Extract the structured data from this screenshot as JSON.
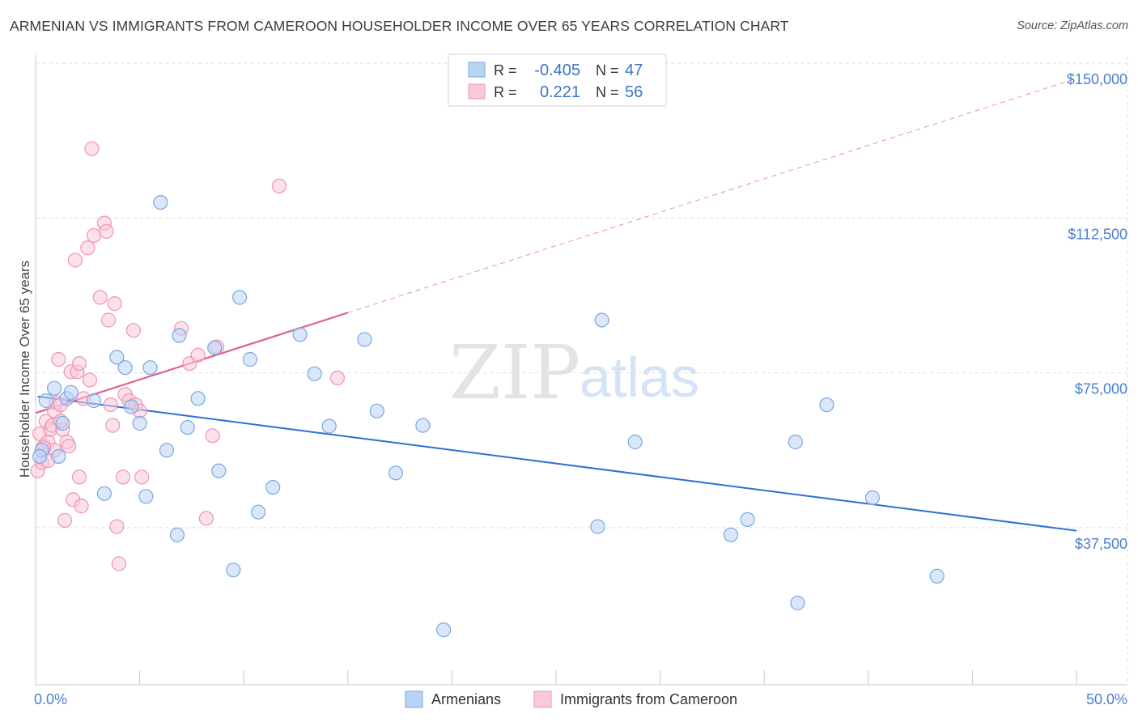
{
  "title": "ARMENIAN VS IMMIGRANTS FROM CAMEROON HOUSEHOLDER INCOME OVER 65 YEARS CORRELATION CHART",
  "source": "Source: ZipAtlas.com",
  "watermark": {
    "zip": "ZIP",
    "atlas": "atlas"
  },
  "colors": {
    "blue_fill": "#b9d3f3",
    "blue_stroke": "#7aa8e4",
    "blue_line": "#2e6fd0",
    "pink_fill": "#f9c9d8",
    "pink_stroke": "#ee95b2",
    "pink_line": "#e0628e",
    "grid": "#dddddd",
    "tick_text": "#4a7fcf"
  },
  "stats": {
    "r_label": "R =",
    "n_label": "N =",
    "series": [
      {
        "r": "-0.405",
        "n": "47"
      },
      {
        "r": "0.221",
        "n": "56"
      }
    ]
  },
  "chart_data": {
    "type": "scatter",
    "title": "ARMENIAN VS IMMIGRANTS FROM CAMEROON HOUSEHOLDER INCOME OVER 65 YEARS CORRELATION CHART",
    "xlabel": "",
    "ylabel": "Householder Income Over 65 years",
    "xlim": [
      0,
      50
    ],
    "ylim": [
      0,
      158000
    ],
    "x_tick_labels": [
      "0.0%",
      "50.0%"
    ],
    "y_ticks": [
      37500,
      75000,
      112500,
      150000
    ],
    "y_tick_labels": [
      "$37,500",
      "$75,000",
      "$112,500",
      "$150,000"
    ],
    "grid": true,
    "legend_position": "bottom",
    "series": [
      {
        "name": "Armenians",
        "r": -0.405,
        "n": 47,
        "trend": {
          "x": [
            0.1,
            50.0
          ],
          "y": [
            73000,
            40500
          ],
          "style": "solid"
        },
        "points": [
          [
            0.3,
            60000
          ],
          [
            0.5,
            72000
          ],
          [
            0.9,
            75000
          ],
          [
            1.1,
            58500
          ],
          [
            1.3,
            66500
          ],
          [
            1.5,
            72500
          ],
          [
            1.7,
            74000
          ],
          [
            2.8,
            72000
          ],
          [
            3.3,
            49500
          ],
          [
            3.9,
            82500
          ],
          [
            4.3,
            80000
          ],
          [
            4.6,
            70500
          ],
          [
            5.0,
            66500
          ],
          [
            5.3,
            48800
          ],
          [
            5.5,
            80000
          ],
          [
            6.0,
            120000
          ],
          [
            6.3,
            60000
          ],
          [
            6.8,
            39500
          ],
          [
            6.9,
            87800
          ],
          [
            7.3,
            65500
          ],
          [
            7.8,
            72500
          ],
          [
            8.6,
            84800
          ],
          [
            8.8,
            55000
          ],
          [
            9.5,
            31000
          ],
          [
            9.8,
            97000
          ],
          [
            10.3,
            82000
          ],
          [
            10.7,
            45000
          ],
          [
            11.4,
            51000
          ],
          [
            12.7,
            88000
          ],
          [
            13.4,
            78500
          ],
          [
            14.1,
            65800
          ],
          [
            15.8,
            86800
          ],
          [
            16.4,
            69500
          ],
          [
            17.3,
            54500
          ],
          [
            18.6,
            66000
          ],
          [
            19.6,
            16500
          ],
          [
            27.0,
            41500
          ],
          [
            27.2,
            91500
          ],
          [
            28.8,
            62000
          ],
          [
            33.4,
            39500
          ],
          [
            34.2,
            43200
          ],
          [
            36.5,
            62000
          ],
          [
            36.6,
            23000
          ],
          [
            38.0,
            71000
          ],
          [
            40.2,
            48500
          ],
          [
            43.3,
            29500
          ],
          [
            0.2,
            58500
          ]
        ]
      },
      {
        "name": "Immigrants from Cameroon",
        "r": 0.221,
        "n": 56,
        "trend": {
          "x": [
            0.0,
            50.0
          ],
          "y": [
            69000,
            150000
          ],
          "solid_to_x": 15.0
        },
        "points": [
          [
            0.1,
            55000
          ],
          [
            0.2,
            64000
          ],
          [
            0.3,
            57000
          ],
          [
            0.4,
            61000
          ],
          [
            0.5,
            67000
          ],
          [
            0.6,
            62000
          ],
          [
            0.7,
            65000
          ],
          [
            0.8,
            66000
          ],
          [
            0.9,
            69500
          ],
          [
            1.0,
            71500
          ],
          [
            1.1,
            82000
          ],
          [
            1.2,
            71000
          ],
          [
            1.3,
            65000
          ],
          [
            1.4,
            43000
          ],
          [
            1.5,
            62000
          ],
          [
            1.6,
            61000
          ],
          [
            1.7,
            79000
          ],
          [
            1.8,
            48000
          ],
          [
            1.9,
            106000
          ],
          [
            2.0,
            79000
          ],
          [
            2.1,
            81000
          ],
          [
            2.1,
            53500
          ],
          [
            2.2,
            46500
          ],
          [
            2.3,
            72500
          ],
          [
            2.5,
            109000
          ],
          [
            2.6,
            77000
          ],
          [
            2.7,
            133000
          ],
          [
            2.8,
            112000
          ],
          [
            3.1,
            97000
          ],
          [
            3.3,
            115000
          ],
          [
            3.4,
            113000
          ],
          [
            3.5,
            91500
          ],
          [
            3.6,
            71000
          ],
          [
            3.7,
            66000
          ],
          [
            3.8,
            95500
          ],
          [
            3.9,
            41500
          ],
          [
            4.0,
            32500
          ],
          [
            4.2,
            53500
          ],
          [
            4.3,
            73500
          ],
          [
            4.5,
            72000
          ],
          [
            4.7,
            89000
          ],
          [
            4.8,
            71000
          ],
          [
            5.0,
            69500
          ],
          [
            5.1,
            53500
          ],
          [
            7.0,
            89500
          ],
          [
            7.4,
            81000
          ],
          [
            7.8,
            83000
          ],
          [
            8.2,
            43500
          ],
          [
            8.5,
            63500
          ],
          [
            8.7,
            85000
          ],
          [
            11.7,
            124000
          ],
          [
            14.5,
            77500
          ],
          [
            0.9,
            60000
          ],
          [
            0.4,
            60500
          ],
          [
            0.6,
            57500
          ],
          [
            1.2,
            67000
          ]
        ]
      }
    ]
  }
}
